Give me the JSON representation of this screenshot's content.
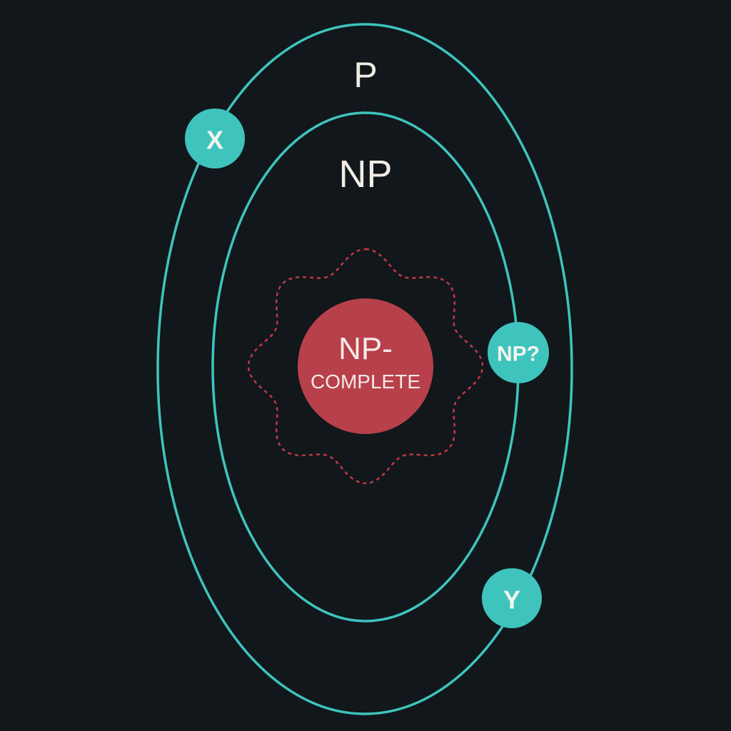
{
  "diagram": {
    "outer_set": {
      "label": "P"
    },
    "inner_set": {
      "label": "NP"
    },
    "core": {
      "line1": "NP-",
      "line2": "COMPLETE"
    },
    "nodes": [
      {
        "id": "x",
        "label": "X"
      },
      {
        "id": "np-question",
        "label": "NP?"
      },
      {
        "id": "y",
        "label": "Y"
      }
    ]
  },
  "colors": {
    "background": "#11171b",
    "ring": "#3ec4bd",
    "node_fill": "#3ec4bd",
    "core_fill": "#b7404a",
    "core_boundary": "#c23844",
    "text": "#f1ede4"
  }
}
